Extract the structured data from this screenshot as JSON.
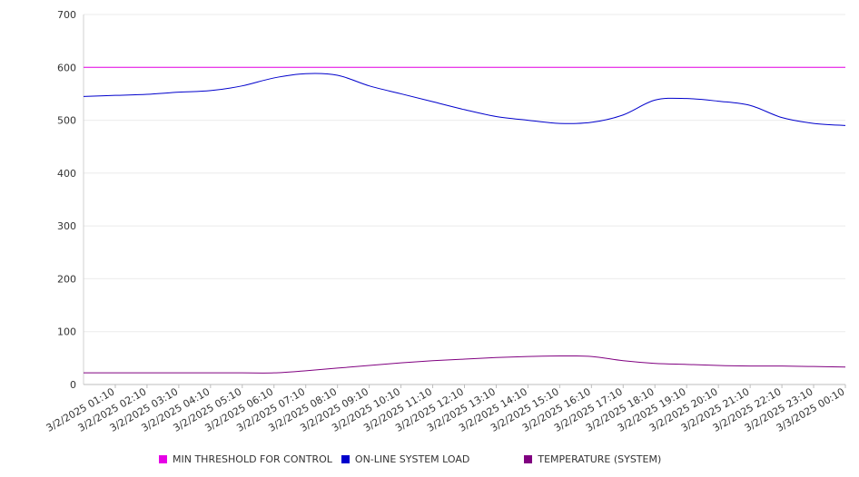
{
  "chart_data": {
    "type": "line",
    "title": "",
    "xlabel": "",
    "ylabel": "",
    "ylim": [
      0,
      700
    ],
    "yticks": [
      "0",
      "100",
      "200",
      "300",
      "400",
      "500",
      "600",
      "700"
    ],
    "xticks": [
      "3/2/2025 01:10",
      "3/2/2025 02:10",
      "3/2/2025 03:10",
      "3/2/2025 04:10",
      "3/2/2025 05:10",
      "3/2/2025 06:10",
      "3/2/2025 07:10",
      "3/2/2025 08:10",
      "3/2/2025 09:10",
      "3/2/2025 10:10",
      "3/2/2025 11:10",
      "3/2/2025 12:10",
      "3/2/2025 13:10",
      "3/2/2025 14:10",
      "3/2/2025 15:10",
      "3/2/2025 16:10",
      "3/2/2025 17:10",
      "3/2/2025 18:10",
      "3/2/2025 19:10",
      "3/2/2025 20:10",
      "3/2/2025 21:10",
      "3/2/2025 22:10",
      "3/2/2025 23:10",
      "3/3/2025 00:10"
    ],
    "grid": true,
    "legend_position": "bottom",
    "series": [
      {
        "name": "MIN THRESHOLD FOR CONTROL",
        "color": "#e600e6",
        "values": [
          600,
          600,
          600,
          600,
          600,
          600,
          600,
          600,
          600,
          600,
          600,
          600,
          600,
          600,
          600,
          600,
          600,
          600,
          600,
          600,
          600,
          600,
          600,
          600,
          600
        ]
      },
      {
        "name": "ON-LINE SYSTEM LOAD",
        "color": "#0000cc",
        "values": [
          545,
          547,
          549,
          553,
          556,
          565,
          580,
          588,
          585,
          565,
          550,
          535,
          520,
          507,
          500,
          494,
          496,
          510,
          538,
          541,
          536,
          528,
          505,
          494,
          490
        ]
      },
      {
        "name": "TEMPERATURE (SYSTEM)",
        "color": "#800080",
        "values": [
          22,
          22,
          22,
          22,
          22,
          22,
          22,
          26,
          31,
          36,
          41,
          45,
          48,
          51,
          53,
          54,
          53,
          45,
          40,
          38,
          36,
          35,
          35,
          34,
          33
        ]
      }
    ]
  }
}
